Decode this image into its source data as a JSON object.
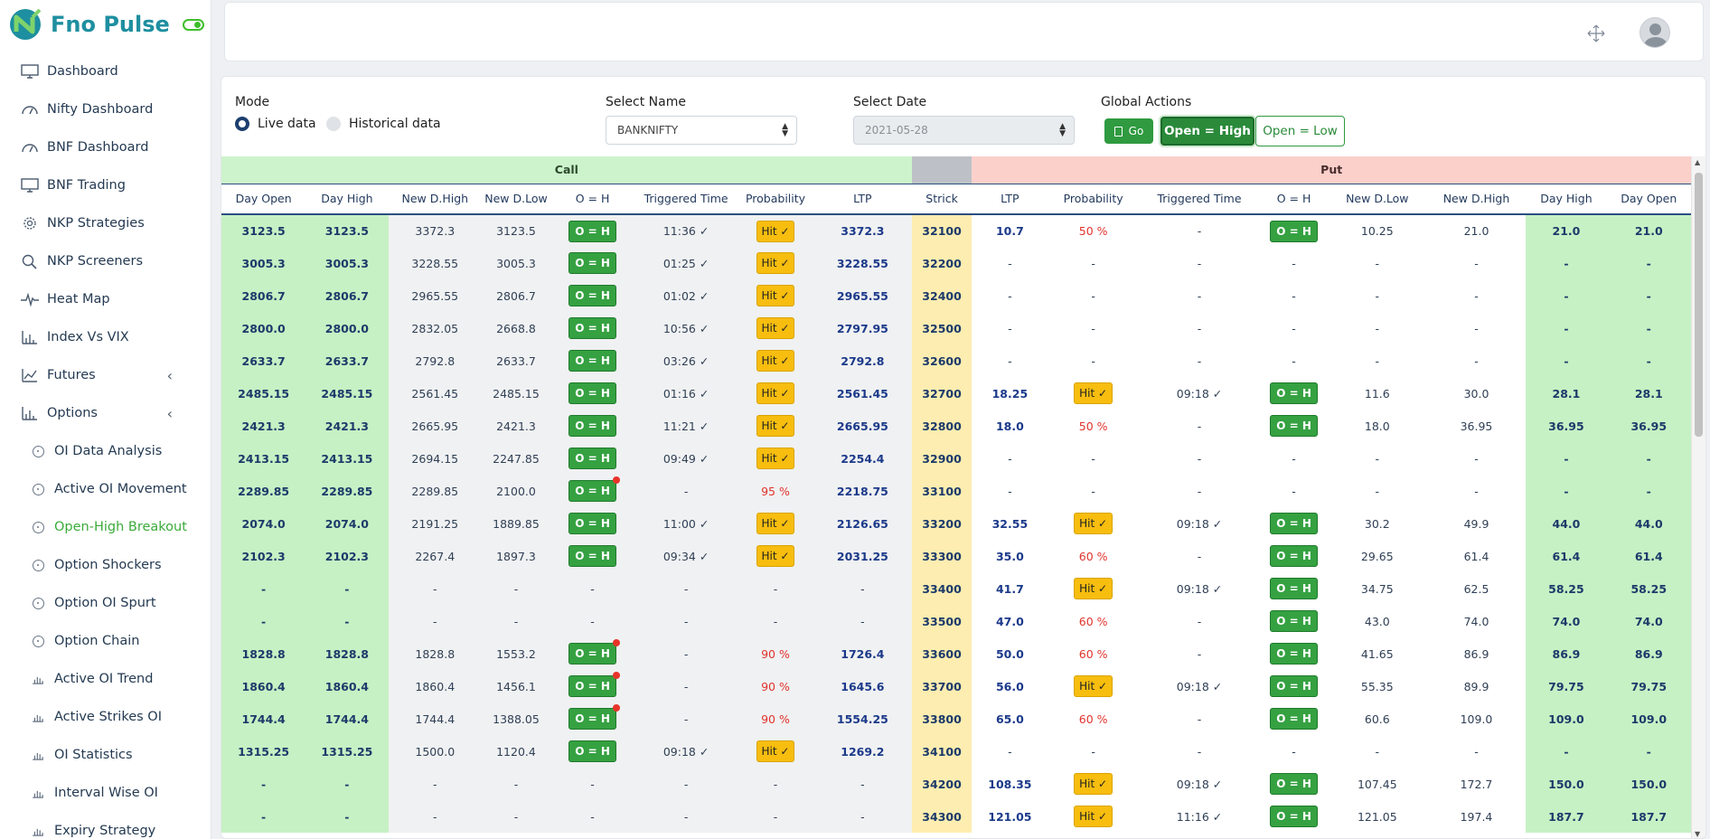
{
  "brand": {
    "name": "Fno Pulse"
  },
  "sidebar": {
    "items": [
      {
        "label": "Dashboard",
        "icon": "monitor-icon"
      },
      {
        "label": "Nifty Dashboard",
        "icon": "gauge-icon"
      },
      {
        "label": "BNF Dashboard",
        "icon": "gauge-icon"
      },
      {
        "label": "BNF Trading",
        "icon": "monitor-icon"
      },
      {
        "label": "NKP Strategies",
        "icon": "cog-icon"
      },
      {
        "label": "NKP Screeners",
        "icon": "search-icon"
      },
      {
        "label": "Heat Map",
        "icon": "pulse-icon"
      },
      {
        "label": "Index Vs VIX",
        "icon": "bar-chart-icon"
      },
      {
        "label": "Futures",
        "icon": "line-chart-icon",
        "chevron": "‹"
      },
      {
        "label": "Options",
        "icon": "bar-chart-icon",
        "chevron": "‹"
      }
    ],
    "subitems": [
      {
        "label": "OI Data Analysis",
        "icon": "circle-icon"
      },
      {
        "label": "Active OI Movement",
        "icon": "circle-icon"
      },
      {
        "label": "Open-High Breakout",
        "icon": "circle-icon",
        "active": true
      },
      {
        "label": "Option Shockers",
        "icon": "circle-icon"
      },
      {
        "label": "Option OI Spurt",
        "icon": "circle-icon"
      },
      {
        "label": "Option Chain",
        "icon": "circle-icon"
      },
      {
        "label": "Active OI Trend",
        "icon": "bar-chart-icon"
      },
      {
        "label": "Active Strikes OI",
        "icon": "bar-chart-icon"
      },
      {
        "label": "OI Statistics",
        "icon": "bar-chart-icon"
      },
      {
        "label": "Interval Wise OI",
        "icon": "bar-chart-icon"
      },
      {
        "label": "Expiry Strategy",
        "icon": "bar-chart-icon"
      }
    ]
  },
  "filters": {
    "mode_label": "Mode",
    "live_label": "Live data",
    "historical_label": "Historical data",
    "name_label": "Select Name",
    "name_value": "BANKNIFTY",
    "date_label": "Select Date",
    "date_value": "2021-05-28",
    "actions_label": "Global Actions",
    "go_label": "Go",
    "open_high_label": "Open = High",
    "open_low_label": "Open = Low"
  },
  "table": {
    "call_label": "Call",
    "put_label": "Put",
    "headers": [
      "Day Open",
      "Day High",
      "New D.High",
      "New D.Low",
      "O = H",
      "Triggered Time",
      "Probability",
      "LTP",
      "Strick",
      "LTP",
      "Probability",
      "Triggered Time",
      "O = H",
      "New D.Low",
      "New D.High",
      "Day High",
      "Day Open"
    ],
    "badge_text": "O = H",
    "hit_text": "Hit ✓",
    "rows": [
      {
        "call": [
          "3123.5",
          "3123.5",
          "3372.3",
          "3123.5",
          "oh",
          "11:36 ✓",
          "hit",
          "3372.3"
        ],
        "strike": "32100",
        "put": [
          "10.7",
          "50 %",
          "-",
          "oh",
          "10.25",
          "21.0",
          "21.0",
          "21.0"
        ]
      },
      {
        "call": [
          "3005.3",
          "3005.3",
          "3228.55",
          "3005.3",
          "oh",
          "01:25 ✓",
          "hit",
          "3228.55"
        ],
        "strike": "32200",
        "put": [
          "-",
          "-",
          "-",
          "-",
          "-",
          "-",
          "-",
          "-"
        ]
      },
      {
        "call": [
          "2806.7",
          "2806.7",
          "2965.55",
          "2806.7",
          "oh",
          "01:02 ✓",
          "hit",
          "2965.55"
        ],
        "strike": "32400",
        "put": [
          "-",
          "-",
          "-",
          "-",
          "-",
          "-",
          "-",
          "-"
        ]
      },
      {
        "call": [
          "2800.0",
          "2800.0",
          "2832.05",
          "2668.8",
          "oh",
          "10:56 ✓",
          "hit",
          "2797.95"
        ],
        "strike": "32500",
        "put": [
          "-",
          "-",
          "-",
          "-",
          "-",
          "-",
          "-",
          "-"
        ]
      },
      {
        "call": [
          "2633.7",
          "2633.7",
          "2792.8",
          "2633.7",
          "oh",
          "03:26 ✓",
          "hit",
          "2792.8"
        ],
        "strike": "32600",
        "put": [
          "-",
          "-",
          "-",
          "-",
          "-",
          "-",
          "-",
          "-"
        ]
      },
      {
        "call": [
          "2485.15",
          "2485.15",
          "2561.45",
          "2485.15",
          "oh",
          "01:16 ✓",
          "hit",
          "2561.45"
        ],
        "strike": "32700",
        "put": [
          "18.25",
          "hit",
          "09:18 ✓",
          "oh",
          "11.6",
          "30.0",
          "28.1",
          "28.1"
        ]
      },
      {
        "call": [
          "2421.3",
          "2421.3",
          "2665.95",
          "2421.3",
          "oh",
          "11:21 ✓",
          "hit",
          "2665.95"
        ],
        "strike": "32800",
        "put": [
          "18.0",
          "50 %",
          "-",
          "oh",
          "18.0",
          "36.95",
          "36.95",
          "36.95"
        ]
      },
      {
        "call": [
          "2413.15",
          "2413.15",
          "2694.15",
          "2247.85",
          "oh",
          "09:49 ✓",
          "hit",
          "2254.4"
        ],
        "strike": "32900",
        "put": [
          "-",
          "-",
          "-",
          "-",
          "-",
          "-",
          "-",
          "-"
        ]
      },
      {
        "call": [
          "2289.85",
          "2289.85",
          "2289.85",
          "2100.0",
          "ohd",
          "-",
          "95 %",
          "2218.75"
        ],
        "strike": "33100",
        "put": [
          "-",
          "-",
          "-",
          "-",
          "-",
          "-",
          "-",
          "-"
        ]
      },
      {
        "call": [
          "2074.0",
          "2074.0",
          "2191.25",
          "1889.85",
          "oh",
          "11:00 ✓",
          "hit",
          "2126.65"
        ],
        "strike": "33200",
        "put": [
          "32.55",
          "hit",
          "09:18 ✓",
          "oh",
          "30.2",
          "49.9",
          "44.0",
          "44.0"
        ]
      },
      {
        "call": [
          "2102.3",
          "2102.3",
          "2267.4",
          "1897.3",
          "oh",
          "09:34 ✓",
          "hit",
          "2031.25"
        ],
        "strike": "33300",
        "put": [
          "35.0",
          "60 %",
          "-",
          "oh",
          "29.65",
          "61.4",
          "61.4",
          "61.4"
        ]
      },
      {
        "call": [
          "-",
          "-",
          "-",
          "-",
          "-",
          "-",
          "-",
          "-"
        ],
        "strike": "33400",
        "put": [
          "41.7",
          "hit",
          "09:18 ✓",
          "oh",
          "34.75",
          "62.5",
          "58.25",
          "58.25"
        ]
      },
      {
        "call": [
          "-",
          "-",
          "-",
          "-",
          "-",
          "-",
          "-",
          "-"
        ],
        "strike": "33500",
        "put": [
          "47.0",
          "60 %",
          "-",
          "oh",
          "43.0",
          "74.0",
          "74.0",
          "74.0"
        ]
      },
      {
        "call": [
          "1828.8",
          "1828.8",
          "1828.8",
          "1553.2",
          "ohd",
          "-",
          "90 %",
          "1726.4"
        ],
        "strike": "33600",
        "put": [
          "50.0",
          "60 %",
          "-",
          "oh",
          "41.65",
          "86.9",
          "86.9",
          "86.9"
        ]
      },
      {
        "call": [
          "1860.4",
          "1860.4",
          "1860.4",
          "1456.1",
          "ohd",
          "-",
          "90 %",
          "1645.6"
        ],
        "strike": "33700",
        "put": [
          "56.0",
          "hit",
          "09:18 ✓",
          "oh",
          "55.35",
          "89.9",
          "79.75",
          "79.75"
        ]
      },
      {
        "call": [
          "1744.4",
          "1744.4",
          "1744.4",
          "1388.05",
          "ohd",
          "-",
          "90 %",
          "1554.25"
        ],
        "strike": "33800",
        "put": [
          "65.0",
          "60 %",
          "-",
          "oh",
          "60.6",
          "109.0",
          "109.0",
          "109.0"
        ]
      },
      {
        "call": [
          "1315.25",
          "1315.25",
          "1500.0",
          "1120.4",
          "oh",
          "09:18 ✓",
          "hit",
          "1269.2"
        ],
        "strike": "34100",
        "put": [
          "-",
          "-",
          "-",
          "-",
          "-",
          "-",
          "-",
          "-"
        ]
      },
      {
        "call": [
          "-",
          "-",
          "-",
          "-",
          "-",
          "-",
          "-",
          "-"
        ],
        "strike": "34200",
        "put": [
          "108.35",
          "hit",
          "09:18 ✓",
          "oh",
          "107.45",
          "172.7",
          "150.0",
          "150.0"
        ]
      },
      {
        "call": [
          "-",
          "-",
          "-",
          "-",
          "-",
          "-",
          "-",
          "-"
        ],
        "strike": "34300",
        "put": [
          "121.05",
          "hit",
          "11:16 ✓",
          "oh",
          "121.05",
          "197.4",
          "187.7",
          "187.7"
        ]
      }
    ]
  },
  "colors": {
    "accent": "#3bab3a",
    "brand": "#1e8fa0",
    "call_band": "#cdf3cc",
    "put_band": "#fbd0cb",
    "strike": "#fdedb0",
    "badge": "#35a141",
    "hit": "#f7bd0f",
    "probability": "#e0342d"
  }
}
